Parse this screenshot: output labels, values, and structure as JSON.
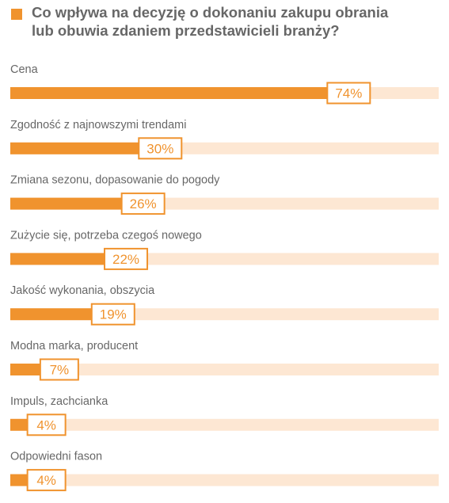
{
  "colors": {
    "accent": "#f0932e",
    "track": "#fde7d3",
    "text": "#676767"
  },
  "chart_data": {
    "type": "bar",
    "orientation": "horizontal",
    "title_lines": [
      "Co wpływa na decyzję o dokonaniu zakupu obrania",
      "lub obuwia zdaniem przedstawicieli branży?"
    ],
    "xlim": [
      0,
      100
    ],
    "unit": "%",
    "categories": [
      "Cena",
      "Zgodność z najnowszymi trendami",
      "Zmiana sezonu, dopasowanie do pogody",
      "Zużycie się, potrzeba czegoś nowego",
      "Jakość wykonania, obszycia",
      "Modna marka, producent",
      "Impuls, zachcianka",
      "Odpowiedni fason"
    ],
    "values": [
      74,
      30,
      26,
      22,
      19,
      7,
      4,
      4
    ],
    "data_labels": [
      "74%",
      "30%",
      "26%",
      "22%",
      "19%",
      "7%",
      "4%",
      "4%"
    ]
  }
}
